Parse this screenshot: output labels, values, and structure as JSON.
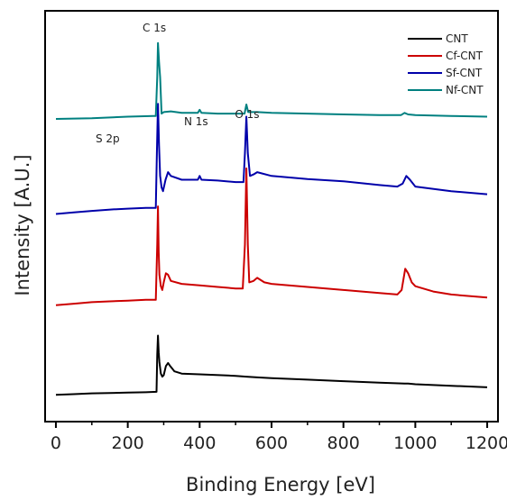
{
  "chart_data": {
    "type": "line",
    "xlabel": "Binding Energy [eV]",
    "ylabel": "Intensity [A.U.]",
    "xlim": [
      -30,
      1230
    ],
    "xticks": [
      0,
      200,
      400,
      600,
      800,
      1000,
      1200
    ],
    "y_tick_labels": false,
    "grid": false,
    "legend_position": "top-right",
    "annotations": [
      {
        "label": "C 1s",
        "x": 284
      },
      {
        "label": "S 2p",
        "x": 164
      },
      {
        "label": "N 1s",
        "x": 400
      },
      {
        "label": "O 1s",
        "x": 532
      }
    ],
    "series": [
      {
        "name": "CNT",
        "color": "#000000",
        "points": [
          [
            0,
            2
          ],
          [
            50,
            3
          ],
          [
            100,
            4
          ],
          [
            150,
            4.5
          ],
          [
            200,
            5
          ],
          [
            250,
            5.5
          ],
          [
            280,
            6
          ],
          [
            282,
            55
          ],
          [
            284,
            80
          ],
          [
            286,
            58
          ],
          [
            288,
            45
          ],
          [
            292,
            30
          ],
          [
            296,
            26
          ],
          [
            300,
            28
          ],
          [
            306,
            40
          ],
          [
            312,
            44
          ],
          [
            318,
            40
          ],
          [
            330,
            33
          ],
          [
            350,
            30
          ],
          [
            400,
            29
          ],
          [
            500,
            27
          ],
          [
            530,
            26
          ],
          [
            560,
            25
          ],
          [
            600,
            24
          ],
          [
            700,
            22
          ],
          [
            800,
            20
          ],
          [
            900,
            18
          ],
          [
            970,
            17
          ],
          [
            980,
            17
          ],
          [
            1000,
            16
          ],
          [
            1100,
            14
          ],
          [
            1200,
            12
          ]
        ]
      },
      {
        "name": "Cf-CNT",
        "color": "#cc0000",
        "points": [
          [
            0,
            120
          ],
          [
            50,
            122
          ],
          [
            100,
            124
          ],
          [
            150,
            125
          ],
          [
            200,
            126
          ],
          [
            250,
            127
          ],
          [
            278,
            127
          ],
          [
            282,
            200
          ],
          [
            284,
            250
          ],
          [
            286,
            190
          ],
          [
            288,
            160
          ],
          [
            292,
            145
          ],
          [
            296,
            140
          ],
          [
            300,
            150
          ],
          [
            306,
            162
          ],
          [
            312,
            160
          ],
          [
            320,
            152
          ],
          [
            350,
            148
          ],
          [
            400,
            146
          ],
          [
            450,
            144
          ],
          [
            500,
            142
          ],
          [
            520,
            142
          ],
          [
            526,
            200
          ],
          [
            530,
            300
          ],
          [
            534,
            200
          ],
          [
            538,
            150
          ],
          [
            550,
            152
          ],
          [
            560,
            156
          ],
          [
            580,
            150
          ],
          [
            600,
            148
          ],
          [
            700,
            144
          ],
          [
            800,
            140
          ],
          [
            900,
            136
          ],
          [
            950,
            134
          ],
          [
            962,
            140
          ],
          [
            972,
            168
          ],
          [
            980,
            162
          ],
          [
            990,
            150
          ],
          [
            1000,
            145
          ],
          [
            1050,
            138
          ],
          [
            1100,
            134
          ],
          [
            1200,
            130
          ]
        ]
      },
      {
        "name": "Sf-CNT",
        "color": "#0000aa",
        "points": [
          [
            0,
            240
          ],
          [
            50,
            242
          ],
          [
            100,
            244
          ],
          [
            160,
            246
          ],
          [
            200,
            247
          ],
          [
            250,
            248
          ],
          [
            278,
            248
          ],
          [
            281,
            320
          ],
          [
            284,
            385
          ],
          [
            287,
            330
          ],
          [
            290,
            290
          ],
          [
            294,
            275
          ],
          [
            298,
            270
          ],
          [
            305,
            285
          ],
          [
            312,
            295
          ],
          [
            320,
            290
          ],
          [
            350,
            285
          ],
          [
            395,
            285
          ],
          [
            400,
            290
          ],
          [
            405,
            285
          ],
          [
            450,
            284
          ],
          [
            500,
            282
          ],
          [
            522,
            282
          ],
          [
            526,
            320
          ],
          [
            530,
            368
          ],
          [
            534,
            320
          ],
          [
            540,
            290
          ],
          [
            550,
            292
          ],
          [
            560,
            295
          ],
          [
            600,
            290
          ],
          [
            700,
            286
          ],
          [
            800,
            283
          ],
          [
            900,
            278
          ],
          [
            950,
            276
          ],
          [
            965,
            280
          ],
          [
            975,
            290
          ],
          [
            985,
            285
          ],
          [
            1000,
            276
          ],
          [
            1100,
            270
          ],
          [
            1200,
            266
          ]
        ]
      },
      {
        "name": "Nf-CNT",
        "color": "#008080",
        "points": [
          [
            0,
            365
          ],
          [
            100,
            366
          ],
          [
            200,
            368
          ],
          [
            270,
            369
          ],
          [
            278,
            369
          ],
          [
            282,
            420
          ],
          [
            284,
            465
          ],
          [
            287,
            440
          ],
          [
            290,
            420
          ],
          [
            294,
            372
          ],
          [
            300,
            374
          ],
          [
            320,
            375
          ],
          [
            350,
            373
          ],
          [
            395,
            373
          ],
          [
            400,
            377
          ],
          [
            405,
            373
          ],
          [
            450,
            372
          ],
          [
            500,
            372
          ],
          [
            525,
            372
          ],
          [
            530,
            384
          ],
          [
            535,
            374
          ],
          [
            560,
            374
          ],
          [
            600,
            373
          ],
          [
            700,
            372
          ],
          [
            800,
            371
          ],
          [
            900,
            370
          ],
          [
            960,
            370
          ],
          [
            970,
            373
          ],
          [
            980,
            371
          ],
          [
            1000,
            370
          ],
          [
            1100,
            369
          ],
          [
            1200,
            368
          ]
        ]
      }
    ]
  }
}
